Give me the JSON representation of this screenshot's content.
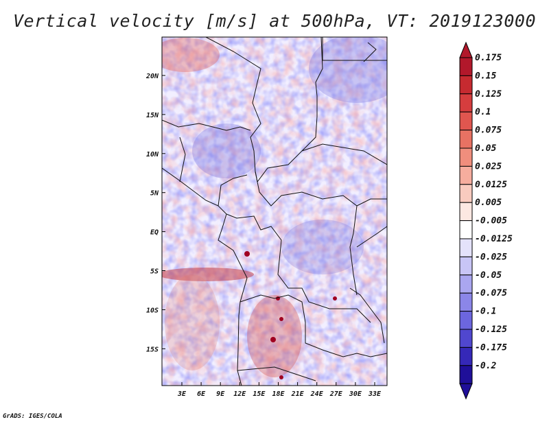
{
  "title": "Vertical velocity [m/s] at 500hPa, VT: 2019123000",
  "credit": "GrADS: IGES/COLA",
  "map": {
    "lat_labels": [
      "20N",
      "15N",
      "10N",
      "5N",
      "EQ",
      "5S",
      "10S",
      "15S"
    ],
    "lon_labels": [
      "3E",
      "6E",
      "9E",
      "12E",
      "15E",
      "18E",
      "21E",
      "24E",
      "27E",
      "30E",
      "33E"
    ]
  },
  "colorbar": {
    "labels": [
      "0.175",
      "0.15",
      "0.125",
      "0.1",
      "0.075",
      "0.05",
      "0.025",
      "0.0125",
      "0.005",
      "-0.005",
      "-0.0125",
      "-0.025",
      "-0.05",
      "-0.075",
      "-0.1",
      "-0.125",
      "-0.175",
      "-0.2"
    ],
    "colors": [
      "#b2182b",
      "#c62a30",
      "#d63d3e",
      "#e0564f",
      "#e87263",
      "#f08e7d",
      "#f6ad9e",
      "#f9cbbf",
      "#fce8e2",
      "#ffffff",
      "#e4e2fb",
      "#c8c5f6",
      "#aaa6f0",
      "#8b86e8",
      "#6c66de",
      "#5047cf",
      "#3528b8",
      "#1f0f99"
    ]
  }
}
